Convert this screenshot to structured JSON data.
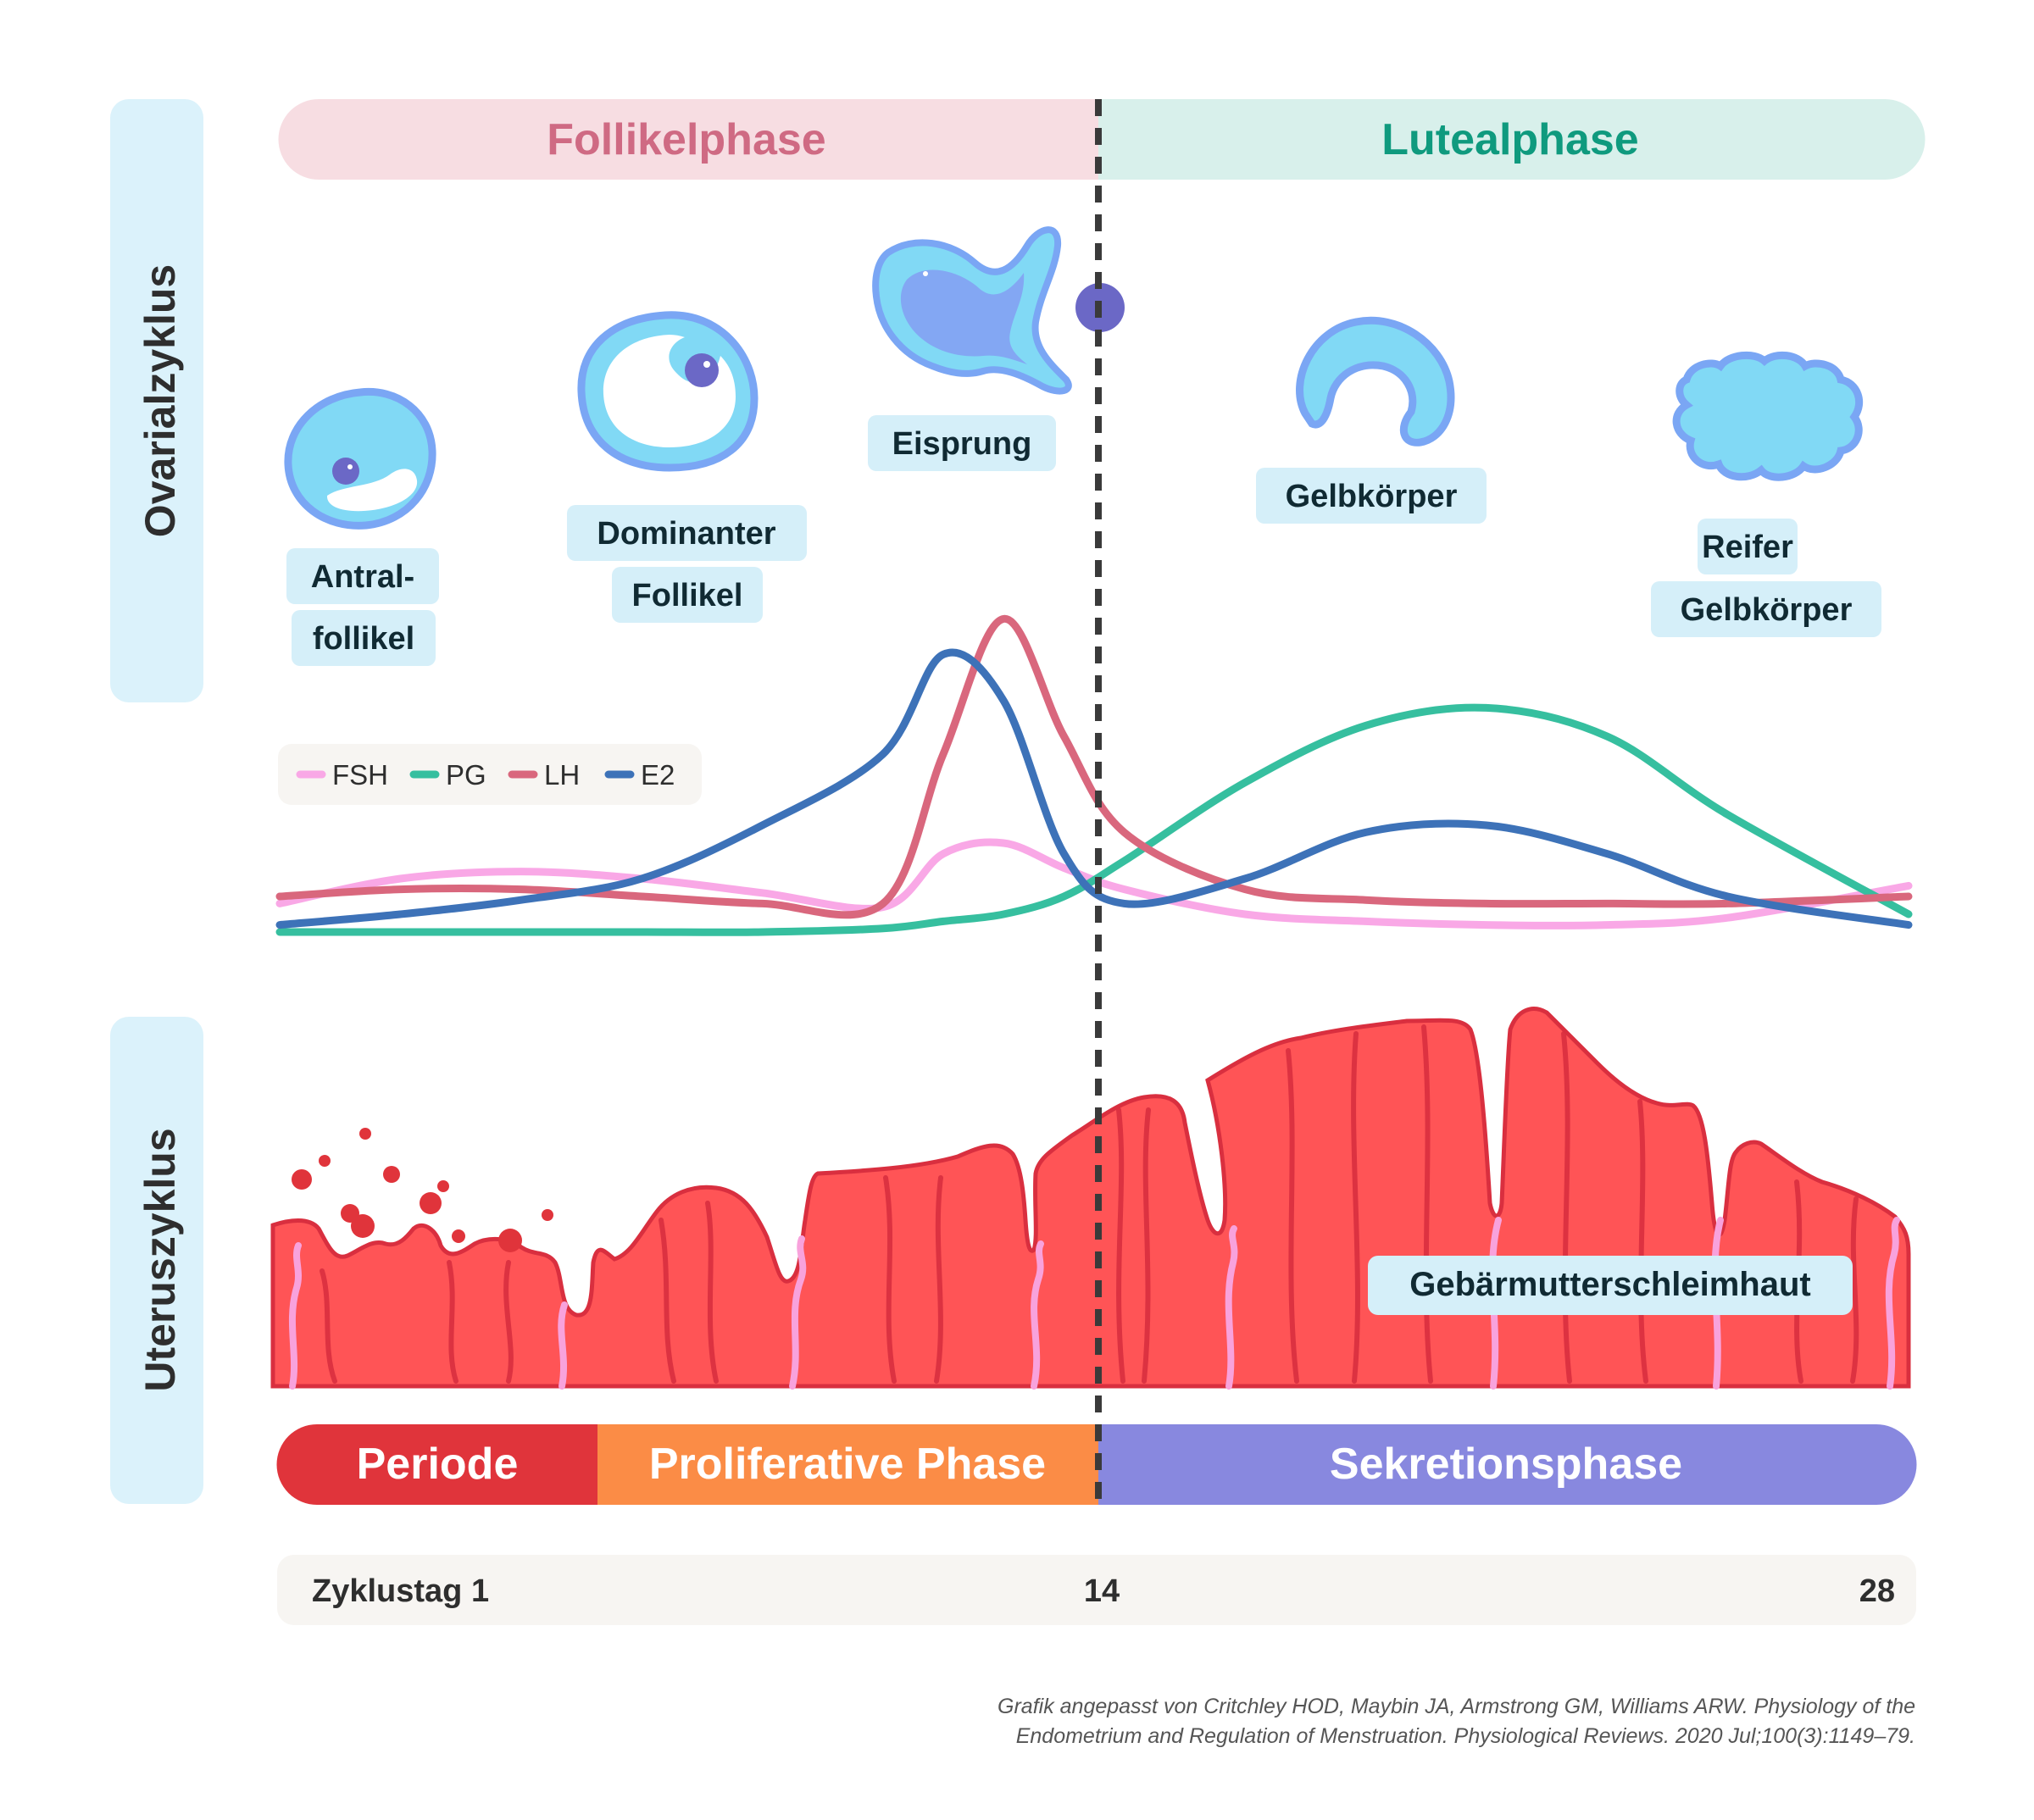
{
  "sections": {
    "ovarian": "Ovarialzyklus",
    "uterine": "Uteruszyklus"
  },
  "phases_top": {
    "follicular": "Follikelphase",
    "luteal": "Lutealphase"
  },
  "stages": {
    "antral_line1": "Antral-",
    "antral_line2": "follikel",
    "dominant_line1": "Dominanter",
    "dominant_line2": "Follikel",
    "ovulation": "Eisprung",
    "corpus_luteum": "Gelbkörper",
    "mature_line1": "Reifer",
    "mature_line2": "Gelbkörper"
  },
  "legend": [
    {
      "name": "FSH",
      "color": "#f9a8e6"
    },
    {
      "name": "PG",
      "color": "#36bf9f"
    },
    {
      "name": "LH",
      "color": "#d9677d"
    },
    {
      "name": "E2",
      "color": "#3d72b8"
    }
  ],
  "hormone_levels": {
    "days": [
      1,
      3,
      5,
      7,
      9,
      11,
      12,
      13,
      14,
      15,
      17,
      19,
      21,
      23,
      25,
      28
    ],
    "FSH": [
      8,
      15,
      17,
      15,
      11,
      7,
      22,
      25,
      18,
      12,
      5,
      3,
      2,
      2,
      4,
      13
    ],
    "PG": [
      0,
      0,
      0,
      0,
      0,
      1,
      3,
      5,
      10,
      20,
      42,
      58,
      63,
      55,
      33,
      5
    ],
    "LH": [
      10,
      12,
      12,
      10,
      8,
      8,
      50,
      88,
      55,
      28,
      12,
      9,
      8,
      8,
      8,
      10
    ],
    "E2": [
      2,
      5,
      9,
      15,
      30,
      50,
      78,
      65,
      22,
      8,
      15,
      28,
      30,
      22,
      10,
      2
    ]
  },
  "endometrium_label": "Gebärmutterschleimhaut",
  "phases_bottom": {
    "period": "Periode",
    "proliferative": "Proliferative Phase",
    "secretory": "Sekretionsphase"
  },
  "timeline": {
    "start": "Zyklustag 1",
    "mid": "14",
    "end": "28"
  },
  "citation": {
    "line1": "Grafik angepasst von Critchley HOD, Maybin JA, Armstrong GM, Williams ARW. Physiology of the",
    "line2": "Endometrium and Regulation of Menstruation. Physiological Reviews. 2020 Jul;100(3):1149–79."
  },
  "colors": {
    "follicular_bg": "#f7dde2",
    "follicular_text": "#cf6a83",
    "luteal_bg": "#d8f0eb",
    "luteal_text": "#0f9a7e",
    "section_bg": "#dbf2fb",
    "label_bg": "#d5eff9",
    "period": "#e0343b",
    "proliferative": "#fb8c46",
    "secretory": "#8888df",
    "tissue": "#ff5456",
    "tissue_dark": "#d92f3f",
    "follicle": "#81d9f5",
    "follicle_edge": "#7aa6f4",
    "oocyte": "#6b68c6"
  }
}
